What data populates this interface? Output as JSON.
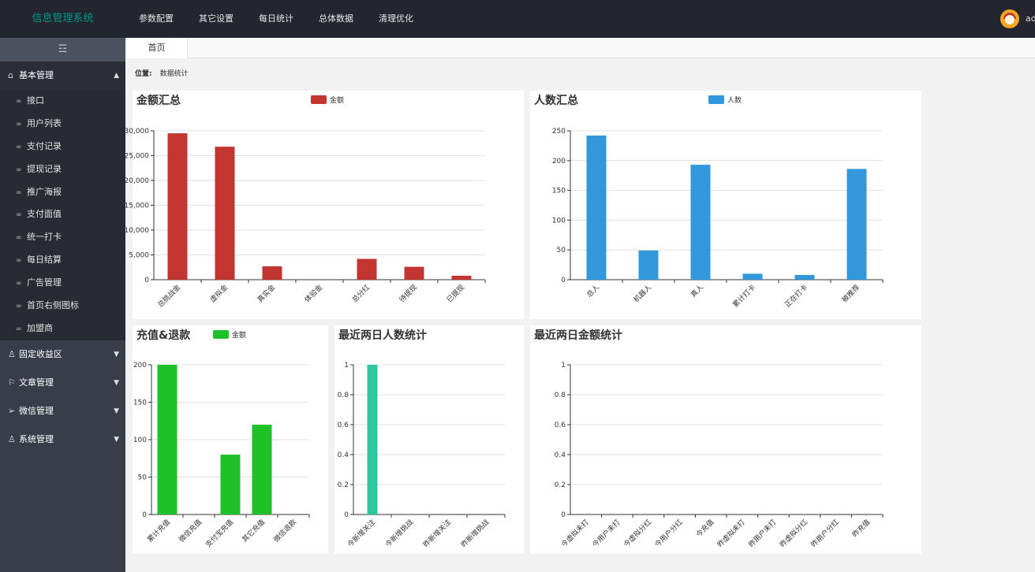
{
  "app": {
    "title": "信息管理系统",
    "username": "ad"
  },
  "topnav": [
    "参数配置",
    "其它设置",
    "每日统计",
    "总体数据",
    "清理优化"
  ],
  "sidebar": {
    "toggle_icon": "☲",
    "groups": [
      {
        "label": "基本管理",
        "icon": "home-icon",
        "open": true,
        "items": [
          "接口",
          "用户列表",
          "支付记录",
          "提现记录",
          "推广海报",
          "支付面值",
          "统一打卡",
          "每日结算",
          "广告管理",
          "首页右侧图标",
          "加盟商"
        ]
      },
      {
        "label": "固定收益区",
        "icon": "user-group-icon",
        "open": false
      },
      {
        "label": "文章管理",
        "icon": "flag-icon",
        "open": false
      },
      {
        "label": "微信管理",
        "icon": "send-icon",
        "open": false
      },
      {
        "label": "系统管理",
        "icon": "user-icon",
        "open": false
      }
    ]
  },
  "tabs": [
    "首页"
  ],
  "breadcrumb": {
    "label": "位置:",
    "value": "数据统计"
  },
  "chart_data": [
    {
      "type": "bar",
      "title": "金额汇总",
      "legend": "金额",
      "color": "#c23531",
      "categories": [
        "总挑战金",
        "虚拟金",
        "真实金",
        "体验金",
        "总分红",
        "待提现",
        "已提现"
      ],
      "values": [
        29500,
        26800,
        2700,
        0,
        4200,
        2600,
        800
      ],
      "ylim": [
        0,
        30000
      ],
      "yticks": [
        "0",
        "5,000",
        "10,000",
        "15,000",
        "20,000",
        "25,000",
        "30,000"
      ]
    },
    {
      "type": "bar",
      "title": "人数汇总",
      "legend": "人数",
      "color": "#3398db",
      "categories": [
        "总人",
        "机器人",
        "真人",
        "累计打卡",
        "正在打卡",
        "被推荐"
      ],
      "values": [
        242,
        49,
        193,
        10,
        8,
        186
      ],
      "ylim": [
        0,
        250
      ],
      "yticks": [
        "0",
        "50",
        "100",
        "150",
        "200",
        "250"
      ]
    },
    {
      "type": "bar",
      "title": "充值&退款",
      "legend": "金额",
      "color": "#1ec228",
      "categories": [
        "累计充值",
        "微信充值",
        "支付宝充值",
        "其它充值",
        "微信退款"
      ],
      "values": [
        200,
        0,
        80,
        120,
        0
      ],
      "ylim": [
        0,
        200
      ],
      "yticks": [
        "0",
        "50",
        "100",
        "150",
        "200"
      ]
    },
    {
      "type": "bar",
      "title": "最近两日人数统计",
      "legend": "",
      "color": "#2ec7a0",
      "categories": [
        "今新增关注",
        "今新增挑战",
        "昨新增关注",
        "昨新增挑战"
      ],
      "values": [
        1,
        0,
        0,
        0
      ],
      "ylim": [
        0,
        1
      ],
      "yticks": [
        "0",
        "0.2",
        "0.4",
        "0.6",
        "0.8",
        "1"
      ]
    },
    {
      "type": "bar",
      "title": "最近两日金额统计",
      "legend": "",
      "color": "#2ec7a0",
      "categories": [
        "今虚拟未打",
        "今用户未打",
        "今虚拟分红",
        "今用户分红",
        "今充值",
        "昨虚拟未打",
        "昨用户未打",
        "昨虚拟分红",
        "昨用户分红",
        "昨充值"
      ],
      "values": [
        0,
        0,
        0,
        0,
        0,
        0,
        0,
        0,
        0,
        0
      ],
      "ylim": [
        0,
        1
      ],
      "yticks": [
        "0",
        "0.2",
        "0.4",
        "0.6",
        "0.8",
        "1"
      ]
    }
  ]
}
